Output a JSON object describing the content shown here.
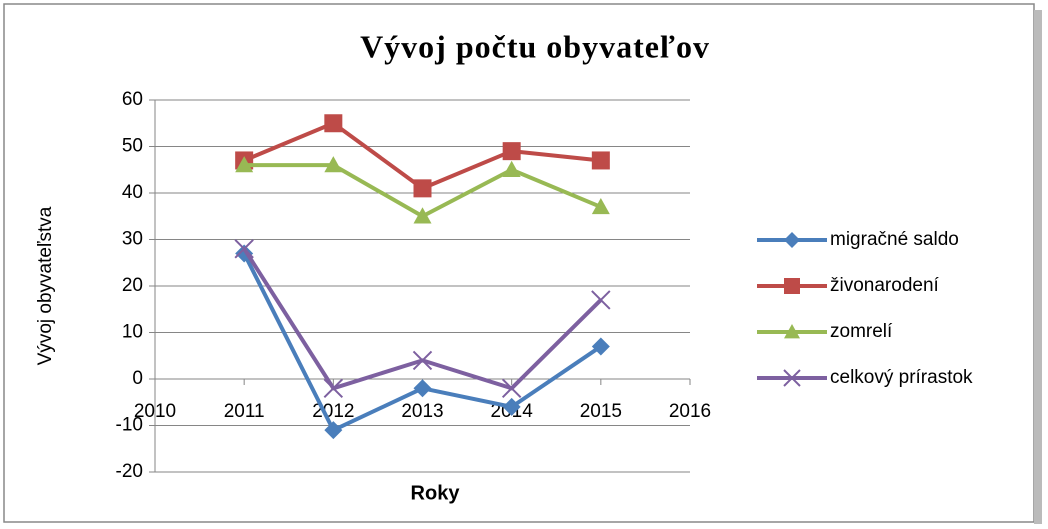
{
  "chart_data": {
    "type": "line",
    "title": "Vývoj počtu obyvateľov",
    "xlabel": "Roky",
    "ylabel": "Vývoj obyvateľstva",
    "x": [
      2011,
      2012,
      2013,
      2014,
      2015
    ],
    "xlim": [
      2010,
      2016
    ],
    "xticks": [
      2010,
      2011,
      2012,
      2013,
      2014,
      2015,
      2016
    ],
    "ylim": [
      -20,
      60
    ],
    "yticks": [
      -20,
      -10,
      0,
      10,
      20,
      30,
      40,
      50,
      60
    ],
    "grid": true,
    "legend": "right",
    "series": [
      {
        "name": "migračné saldo",
        "color": "#4a7ebb",
        "marker": "diamond",
        "values": [
          27,
          -11,
          -2,
          -6,
          7
        ]
      },
      {
        "name": "živonarodení",
        "color": "#be4b48",
        "marker": "square",
        "values": [
          47,
          55,
          41,
          49,
          47
        ]
      },
      {
        "name": "zomrelí",
        "color": "#98b954",
        "marker": "triangle",
        "values": [
          46,
          46,
          35,
          45,
          37
        ]
      },
      {
        "name": "celkový prírastok",
        "color": "#7d60a0",
        "marker": "x",
        "values": [
          28,
          -2,
          4,
          -2,
          17
        ]
      }
    ]
  }
}
